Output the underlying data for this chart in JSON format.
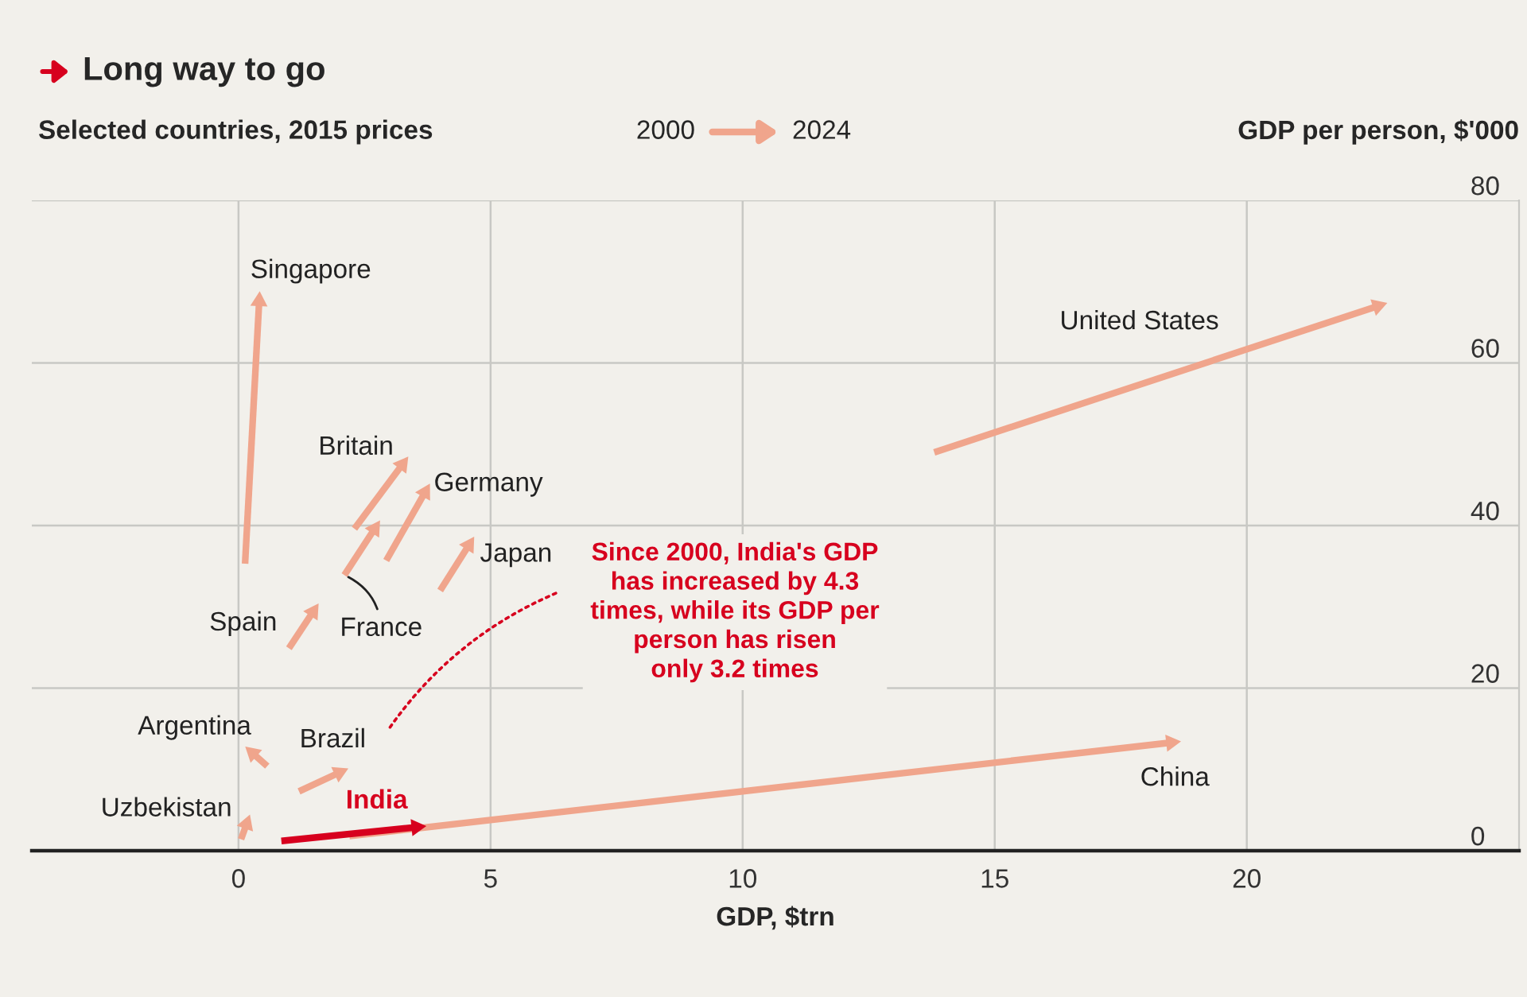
{
  "chart_data": {
    "type": "line",
    "title": "Long way to go",
    "subtitle": "Selected countries, 2015 prices",
    "xlabel": "GDP, $trn",
    "ylabel": "GDP per person, $'000",
    "annotations": [
      "Since 2000, India's GDP\nhas increased by 4.3\ntimes, while its GDP per\nperson has risen\nonly 3.2 times",
      "2000",
      "2024"
    ],
    "series": [
      {
        "name": "Singapore",
        "color": "#f0a58c",
        "x": [
          0.13,
          0.41
        ],
        "values": [
          35.3,
          67.6
        ]
      },
      {
        "name": "Britain",
        "color": "#f0a58c",
        "x": [
          2.3,
          3.25
        ],
        "values": [
          39.6,
          47.5
        ]
      },
      {
        "name": "France",
        "color": "#f0a58c",
        "x": [
          2.1,
          2.7
        ],
        "values": [
          33.9,
          39.6
        ]
      },
      {
        "name": "Germany",
        "color": "#f0a58c",
        "x": [
          2.93,
          3.7
        ],
        "values": [
          35.7,
          44.1
        ]
      },
      {
        "name": "Japan",
        "color": "#f0a58c",
        "x": [
          4.0,
          4.57
        ],
        "values": [
          32.0,
          37.6
        ]
      },
      {
        "name": "Spain",
        "color": "#f0a58c",
        "x": [
          1.0,
          1.48
        ],
        "values": [
          24.9,
          29.4
        ]
      },
      {
        "name": "Argentina",
        "color": "#f0a58c",
        "x": [
          0.57,
          0.28
        ],
        "values": [
          10.4,
          12.0
        ]
      },
      {
        "name": "Brazil",
        "color": "#f0a58c",
        "x": [
          1.2,
          2.0
        ],
        "values": [
          7.3,
          9.6
        ]
      },
      {
        "name": "Uzbekistan",
        "color": "#f0a58c",
        "x": [
          0.05,
          0.16
        ],
        "values": [
          1.4,
          3.3
        ]
      },
      {
        "name": "China",
        "color": "#f0a58c",
        "x": [
          2.2,
          18.5
        ],
        "values": [
          1.8,
          13.3
        ]
      },
      {
        "name": "United States",
        "color": "#f0a58c",
        "x": [
          13.8,
          22.6
        ],
        "values": [
          49.0,
          67.0
        ]
      },
      {
        "name": "India",
        "color": "#d7001e",
        "x": [
          0.85,
          3.53
        ],
        "values": [
          1.2,
          2.9
        ]
      }
    ],
    "xlim": [
      -4.1,
      25.4
    ],
    "xticks": [
      0,
      5,
      10,
      15,
      20
    ],
    "ylim": [
      0,
      80
    ],
    "yticks": [
      0,
      20,
      40,
      60,
      80
    ],
    "grid": true,
    "marker": "triangle",
    "line_style": "solid"
  }
}
